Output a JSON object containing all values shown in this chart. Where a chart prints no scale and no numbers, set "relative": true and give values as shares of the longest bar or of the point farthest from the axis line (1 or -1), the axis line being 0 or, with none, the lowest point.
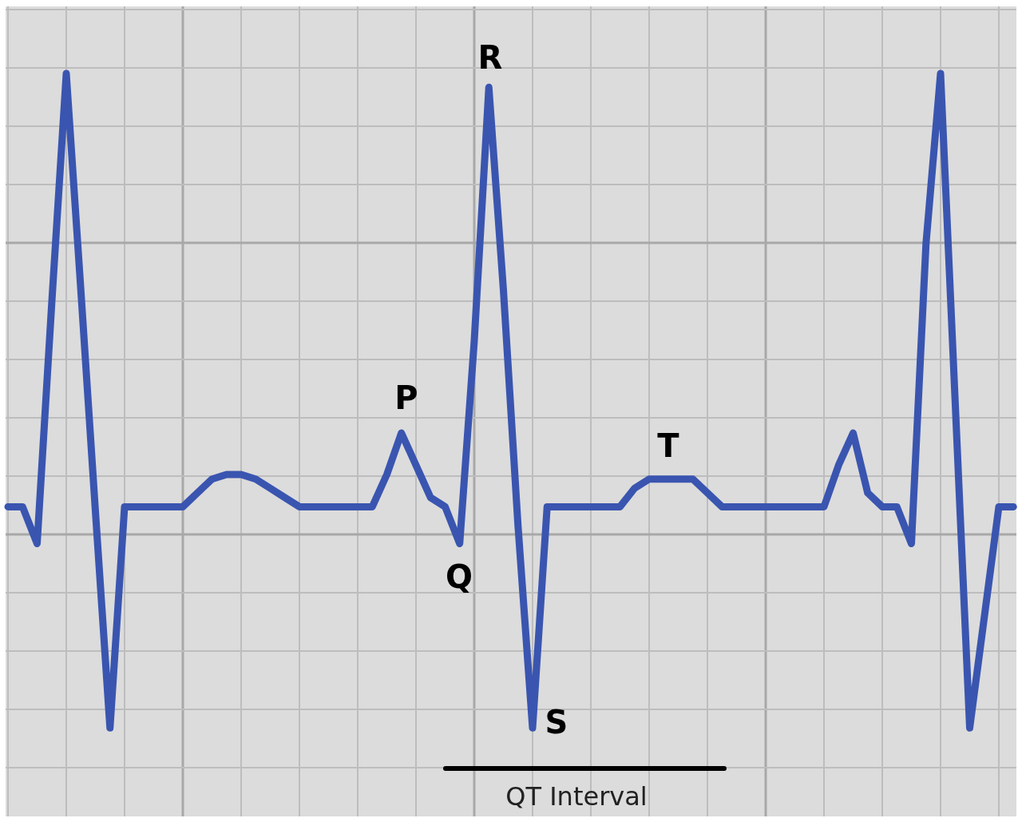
{
  "chart_data": {
    "type": "line",
    "relative": true,
    "grid": true,
    "categories": [
      null,
      null,
      null,
      null,
      null,
      null,
      null,
      null,
      null,
      null,
      null,
      null,
      null,
      null,
      null,
      null,
      null,
      null,
      null,
      null,
      null,
      null,
      null,
      null,
      null,
      null,
      null,
      null,
      null,
      null,
      null,
      null,
      null,
      null,
      null,
      null,
      null,
      null,
      null,
      null,
      null,
      null,
      null,
      null,
      null,
      null,
      null,
      null,
      null,
      null,
      null,
      null,
      null,
      null,
      null,
      null,
      null,
      null,
      null,
      null,
      null,
      null,
      null,
      null,
      null,
      null,
      null,
      null,
      null,
      null
    ],
    "marker": "none",
    "line_style": "solid",
    "series": [
      {
        "color": "#3a55b0",
        "values": [
          0.06,
          0.06,
          -0.02,
          0.5,
          1,
          0.53,
          0.05,
          -0.42,
          0.06,
          0.06,
          0.06,
          0.06,
          0.06,
          0.09,
          0.12,
          0.13,
          0.13,
          0.12,
          0.1,
          0.08,
          0.06,
          0.06,
          0.06,
          0.06,
          0.06,
          0.06,
          0.13,
          0.22,
          0.15,
          0.08,
          0.06,
          -0.02,
          0.42,
          0.97,
          0.53,
          0.02,
          -0.42,
          0.06,
          0.06,
          0.06,
          0.06,
          0.06,
          0.06,
          0.1,
          0.12,
          0.12,
          0.12,
          0.12,
          0.09,
          0.06,
          0.06,
          0.06,
          0.06,
          0.06,
          0.06,
          0.06,
          0.06,
          0.15,
          0.22,
          0.09,
          0.06,
          0.06,
          -0.02,
          0.63,
          1,
          0.29,
          -0.42,
          -0.18,
          0.06,
          0.06
        ]
      }
    ],
    "annotations": [
      "P",
      "Q",
      "R",
      "S",
      "T",
      "QT Interval"
    ]
  }
}
